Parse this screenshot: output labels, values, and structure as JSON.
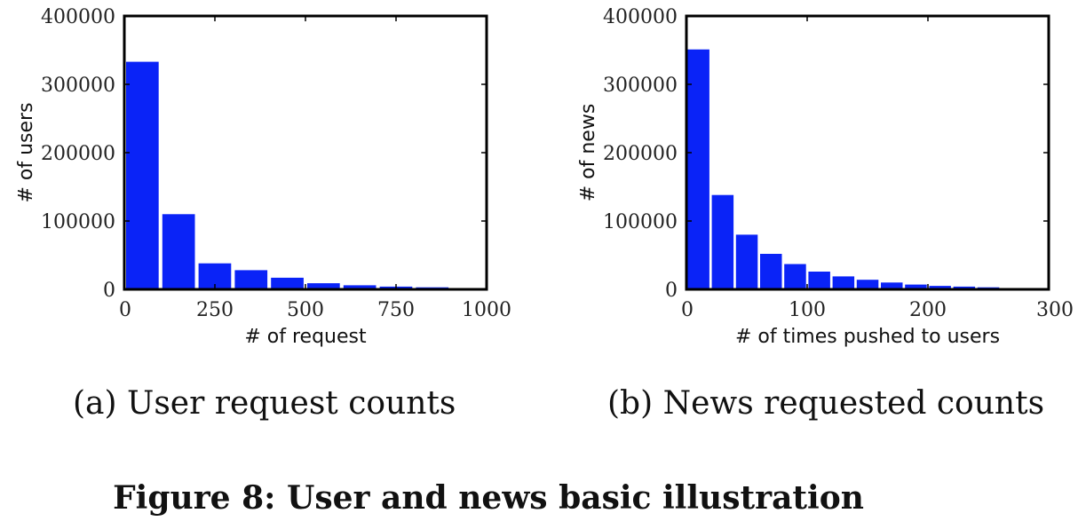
{
  "figure_title": "Figure 8: User and news basic illustration",
  "chart_data": [
    {
      "type": "bar",
      "caption": "(a) User request counts",
      "xlabel": "# of request",
      "ylabel": "# of users",
      "xlim": [
        0,
        1000
      ],
      "ylim": [
        0,
        400000
      ],
      "xticks": [
        0,
        250,
        500,
        750,
        1000
      ],
      "yticks": [
        0,
        100000,
        200000,
        300000,
        400000
      ],
      "bin_width": 100,
      "bins": [
        0,
        100,
        200,
        300,
        400,
        500,
        600,
        700,
        800,
        900
      ],
      "values": [
        333000,
        110000,
        38000,
        28000,
        17000,
        9000,
        6000,
        4000,
        3000,
        0
      ],
      "grid": false,
      "color": "#0a23f7"
    },
    {
      "type": "bar",
      "caption": "(b) News requested counts",
      "xlabel": "# of times pushed to users",
      "ylabel": "# of news",
      "xlim": [
        0,
        300
      ],
      "ylim": [
        0,
        400000
      ],
      "xticks": [
        0,
        100,
        200,
        300
      ],
      "yticks": [
        0,
        100000,
        200000,
        300000,
        400000
      ],
      "bin_width": 20,
      "bins": [
        0,
        20,
        40,
        60,
        80,
        100,
        120,
        140,
        160,
        180,
        200,
        220,
        240,
        260
      ],
      "values": [
        351000,
        138000,
        80000,
        52000,
        37000,
        26000,
        19000,
        14000,
        10000,
        7000,
        5000,
        4000,
        3000,
        2000
      ],
      "grid": false,
      "color": "#0a23f7"
    }
  ]
}
